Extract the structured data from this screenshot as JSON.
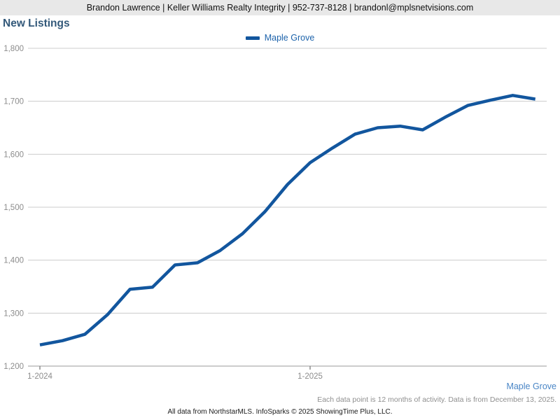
{
  "header": {
    "text": "Brandon Lawrence | Keller Williams Realty Integrity | 952-737-8128 | brandonl@mplsnetvisions.com"
  },
  "title": "New Listings",
  "legend": {
    "label": "Maple Grove"
  },
  "chart_data": {
    "type": "line",
    "title": "New Listings",
    "x": [
      "1-2024",
      "2-2024",
      "3-2024",
      "4-2024",
      "5-2024",
      "6-2024",
      "7-2024",
      "8-2024",
      "9-2024",
      "10-2024",
      "11-2024",
      "12-2024",
      "1-2025",
      "2-2025",
      "3-2025",
      "4-2025",
      "5-2025",
      "6-2025",
      "7-2025",
      "8-2025",
      "9-2025",
      "10-2025",
      "11-2025"
    ],
    "series": [
      {
        "name": "Maple Grove",
        "values": [
          1240,
          1248,
          1260,
          1297,
          1345,
          1349,
          1391,
          1395,
          1418,
          1450,
          1492,
          1543,
          1584,
          1612,
          1638,
          1650,
          1653,
          1646,
          1670,
          1692,
          1702,
          1711,
          1704
        ]
      }
    ],
    "x_axis_labels": [
      "1-2024",
      "1-2025"
    ],
    "ylim": [
      1200,
      1800
    ],
    "yticks": [
      1200,
      1300,
      1400,
      1500,
      1600,
      1700,
      1800
    ],
    "grid": "horizontal",
    "legend_position": "top-center"
  },
  "footer": {
    "area_label": "Maple Grove",
    "disclaimer": "Each data point is 12 months of activity. Data is from December 13, 2025.",
    "attribution": "All data from NorthstarMLS. InfoSparks © 2025 ShowingTime Plus, LLC."
  },
  "colors": {
    "line": "#12569e",
    "header_bg": "#e8e8e8",
    "title_text": "#33597a",
    "legend_text": "#1d63ab",
    "grid": "#cccccc",
    "axis": "#999999",
    "tick_label": "#8c8c8c",
    "footer_link": "#4a86c6"
  }
}
